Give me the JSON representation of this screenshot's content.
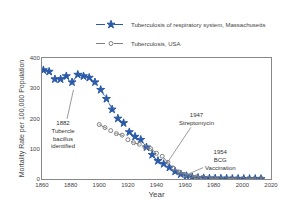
{
  "chart_data": {
    "type": "line",
    "title": "",
    "xlabel": "Year",
    "ylabel": "Mortality Rate per 100,000 Population",
    "xlim": [
      1860,
      2020
    ],
    "ylim": [
      0,
      400
    ],
    "xticks": [
      1860,
      1880,
      1900,
      1920,
      1940,
      1960,
      1980,
      2000,
      2020
    ],
    "yticks": [
      0,
      100,
      200,
      300,
      400
    ],
    "grid": false,
    "legend": "upper right",
    "series": [
      {
        "name": "Tuberculosis of respiratory system, Massachusetts",
        "color": "#2b5aa8",
        "marker": "star",
        "line_style": "dashed",
        "x": [
          1861,
          1865,
          1869,
          1873,
          1877,
          1881,
          1885,
          1889,
          1893,
          1897,
          1901,
          1905,
          1909,
          1913,
          1917,
          1921,
          1925,
          1929,
          1933,
          1937,
          1941,
          1945,
          1949,
          1953,
          1957,
          1961,
          1965,
          1969,
          1973,
          1977,
          1981,
          1985,
          1989,
          1993,
          1997,
          2001,
          2005,
          2009,
          2013
        ],
        "values": [
          360,
          355,
          330,
          330,
          340,
          320,
          345,
          340,
          335,
          320,
          295,
          265,
          230,
          200,
          185,
          155,
          140,
          130,
          105,
          80,
          60,
          50,
          38,
          25,
          16,
          10,
          6,
          4,
          3,
          2,
          2,
          1.5,
          1.5,
          1,
          1,
          0.8,
          0.7,
          0.6,
          0.5
        ]
      },
      {
        "name": "Tuberculosis, USA",
        "color": "#808080",
        "marker": "open_circle",
        "line_style": "dashed",
        "x": [
          1900,
          1904,
          1908,
          1912,
          1916,
          1920,
          1924,
          1928,
          1932,
          1936,
          1940,
          1944,
          1948,
          1952,
          1956,
          1960,
          1964,
          1968,
          1972,
          1976,
          1980,
          1984,
          1988,
          1992,
          1996,
          2000,
          2004,
          2008,
          2012,
          2014
        ],
        "values": [
          180,
          170,
          160,
          150,
          145,
          130,
          120,
          115,
          105,
          100,
          85,
          75,
          55,
          35,
          22,
          14,
          10,
          7,
          5,
          3,
          2.5,
          1.8,
          1.5,
          1.2,
          1.0,
          0.8,
          0.7,
          0.5,
          0.4,
          0.3
        ]
      }
    ],
    "annotations": [
      {
        "text": "1882\nTubercle\nbacillus\nidentified",
        "x": 1882,
        "y": 295
      },
      {
        "text": "1947\nStreptomycin",
        "x": 1947,
        "y": 50
      },
      {
        "text": "1954\nBCG\nVaccination",
        "x": 1960,
        "y": 12
      }
    ]
  }
}
